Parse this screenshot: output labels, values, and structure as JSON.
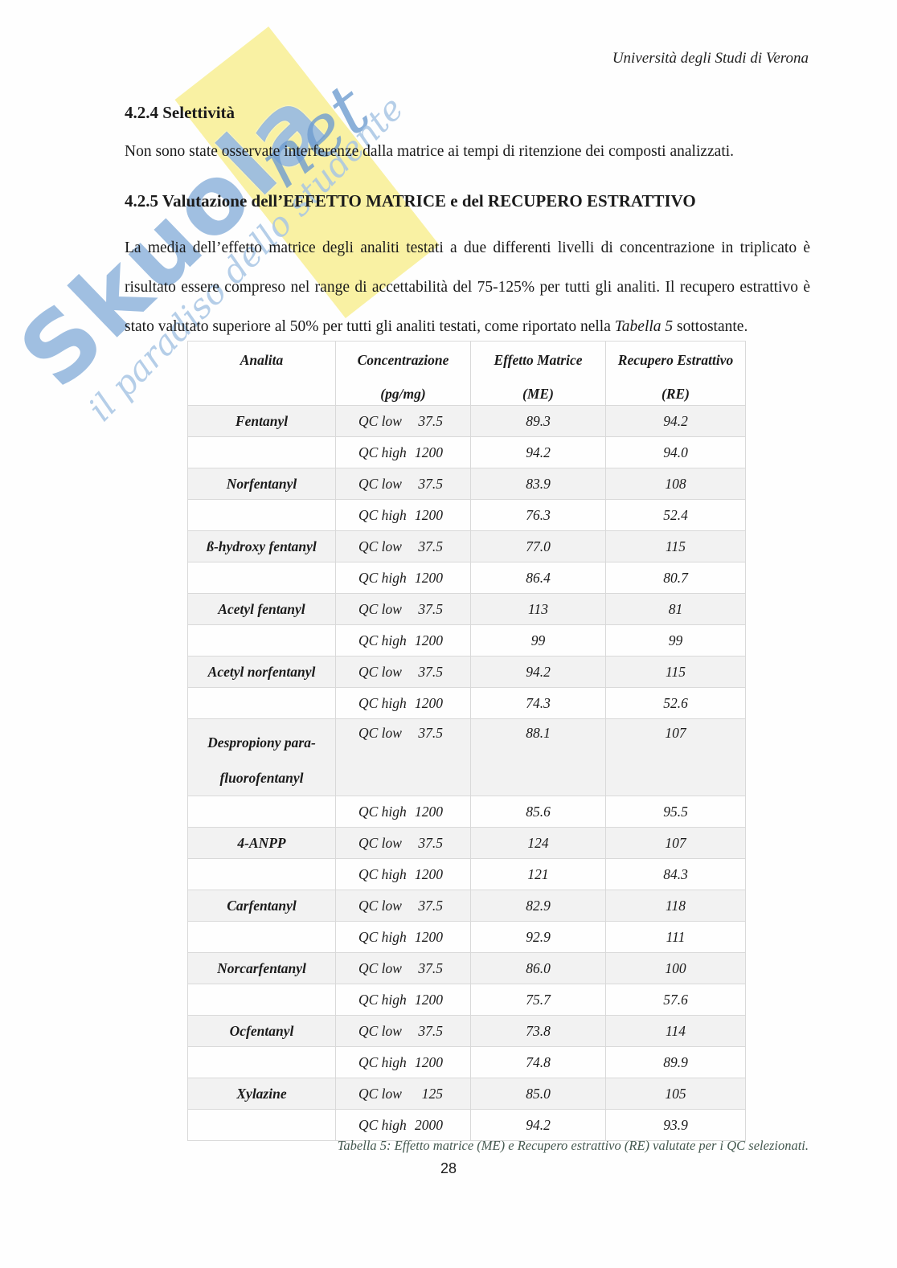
{
  "header": {
    "institution": "Università degli Studi di Verona"
  },
  "section_424": {
    "heading": "4.2.4 Selettività",
    "paragraph": "Non sono state osservate interferenze dalla matrice ai tempi di ritenzione dei composti analizzati."
  },
  "section_425": {
    "heading": "4.2.5 Valutazione dell’EFFETTO MATRICE e del RECUPERO ESTRATTIVO",
    "paragraph_part1": "La media dell’effetto matrice degli analiti testati a due differenti livelli di concentrazione in triplicato è risultato essere compreso nel range di accettabilità del 75-125% per tutti gli analiti. Il recupero estrattivo è stato valutato superiore al 50% per tutti gli analiti testati, come riportato nella ",
    "paragraph_italic_ref": "Tabella 5",
    "paragraph_part2": " sottostante."
  },
  "watermark": {
    "brand": "Skuola",
    "brand_suffix": "net",
    "tagline": "il paradiso dello studente",
    "brand_color": "#7ca6d6",
    "accent_color": "#f8f09b"
  },
  "table": {
    "headers": [
      {
        "line1": "Analita",
        "line2": ""
      },
      {
        "line1": "Concentrazione",
        "line2": "(pg/mg)"
      },
      {
        "line1": "Effetto Matrice",
        "line2": "(ME)"
      },
      {
        "line1": "Recupero Estrattivo",
        "line2": "(RE)"
      }
    ],
    "rows": [
      {
        "analyte": "Fentanyl",
        "qc": "QC low",
        "conc": "37.5",
        "me": "89.3",
        "re": "94.2",
        "shaded": true
      },
      {
        "analyte": "",
        "qc": "QC high",
        "conc": "1200",
        "me": "94.2",
        "re": "94.0",
        "shaded": false
      },
      {
        "analyte": "Norfentanyl",
        "qc": "QC low",
        "conc": "37.5",
        "me": "83.9",
        "re": "108",
        "shaded": true
      },
      {
        "analyte": "",
        "qc": "QC high",
        "conc": "1200",
        "me": "76.3",
        "re": "52.4",
        "shaded": false
      },
      {
        "analyte": "ß-hydroxy fentanyl",
        "qc": "QC low",
        "conc": "37.5",
        "me": "77.0",
        "re": "115",
        "shaded": true
      },
      {
        "analyte": "",
        "qc": "QC high",
        "conc": "1200",
        "me": "86.4",
        "re": "80.7",
        "shaded": false
      },
      {
        "analyte": "Acetyl fentanyl",
        "qc": "QC low",
        "conc": "37.5",
        "me": "113",
        "re": "81",
        "shaded": true
      },
      {
        "analyte": "",
        "qc": "QC high",
        "conc": "1200",
        "me": "99",
        "re": "99",
        "shaded": false
      },
      {
        "analyte": "Acetyl norfentanyl",
        "qc": "QC low",
        "conc": "37.5",
        "me": "94.2",
        "re": "115",
        "shaded": true
      },
      {
        "analyte": "",
        "qc": "QC high",
        "conc": "1200",
        "me": "74.3",
        "re": "52.6",
        "shaded": false
      },
      {
        "analyte": "Despropiony para-",
        "analyte_line2": "fluorofentanyl",
        "qc": "QC low",
        "conc": "37.5",
        "me": "88.1",
        "re": "107",
        "shaded": true,
        "tall": true
      },
      {
        "analyte": "",
        "qc": "QC high",
        "conc": "1200",
        "me": "85.6",
        "re": "95.5",
        "shaded": false
      },
      {
        "analyte": "4-ANPP",
        "qc": "QC low",
        "conc": "37.5",
        "me": "124",
        "re": "107",
        "shaded": true
      },
      {
        "analyte": "",
        "qc": "QC high",
        "conc": "1200",
        "me": "121",
        "re": "84.3",
        "shaded": false
      },
      {
        "analyte": "Carfentanyl",
        "qc": "QC low",
        "conc": "37.5",
        "me": "82.9",
        "re": "118",
        "shaded": true
      },
      {
        "analyte": "",
        "qc": "QC high",
        "conc": "1200",
        "me": "92.9",
        "re": "111",
        "shaded": false
      },
      {
        "analyte": "Norcarfentanyl",
        "qc": "QC low",
        "conc": "37.5",
        "me": "86.0",
        "re": "100",
        "shaded": true
      },
      {
        "analyte": "",
        "qc": "QC high",
        "conc": "1200",
        "me": "75.7",
        "re": "57.6",
        "shaded": false
      },
      {
        "analyte": "Ocfentanyl",
        "qc": "QC low",
        "conc": "37.5",
        "me": "73.8",
        "re": "114",
        "shaded": true
      },
      {
        "analyte": "",
        "qc": "QC high",
        "conc": "1200",
        "me": "74.8",
        "re": "89.9",
        "shaded": false
      },
      {
        "analyte": "Xylazine",
        "qc": "QC low",
        "conc": "125",
        "me": "85.0",
        "re": "105",
        "shaded": true
      },
      {
        "analyte": "",
        "qc": "QC high",
        "conc": "2000",
        "me": "94.2",
        "re": "93.9",
        "shaded": false
      }
    ],
    "caption": "Tabella 5: Effetto matrice (ME) e Recupero estrattivo (RE) valutate per i QC selezionati."
  },
  "footer": {
    "page_number": "28"
  }
}
